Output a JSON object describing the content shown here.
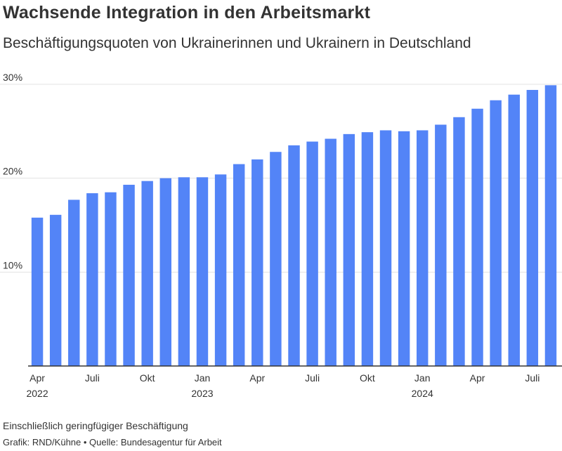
{
  "title": "Wachsende Integration in den Arbeitsmarkt",
  "subtitle": "Beschäftigungsquoten von Ukrainerinnen und Ukrainern in Deutschland",
  "note": "Einschließlich geringfügiger Beschäftigung",
  "credit": "Grafik: RND/Kühne • Quelle: Bundesagentur für Arbeit",
  "chart_data": {
    "type": "bar",
    "color": "#5384f7",
    "ylim": [
      0,
      30
    ],
    "yticks": [
      {
        "value": 10,
        "label": "10%"
      },
      {
        "value": 20,
        "label": "20%"
      },
      {
        "value": 30,
        "label": "30%"
      }
    ],
    "grid": true,
    "categories": [
      "2022-04",
      "2022-05",
      "2022-06",
      "2022-07",
      "2022-08",
      "2022-09",
      "2022-10",
      "2022-11",
      "2022-12",
      "2023-01",
      "2023-02",
      "2023-03",
      "2023-04",
      "2023-05",
      "2023-06",
      "2023-07",
      "2023-08",
      "2023-09",
      "2023-10",
      "2023-11",
      "2023-12",
      "2024-01",
      "2024-02",
      "2024-03",
      "2024-04",
      "2024-05",
      "2024-06",
      "2024-07",
      "2024-08"
    ],
    "values": [
      15.8,
      16.1,
      17.7,
      18.4,
      18.5,
      19.3,
      19.7,
      20.0,
      20.1,
      20.1,
      20.4,
      21.5,
      22.0,
      22.8,
      23.5,
      23.9,
      24.2,
      24.7,
      24.9,
      25.1,
      25.0,
      25.1,
      25.7,
      26.5,
      27.4,
      28.3,
      28.9,
      29.4,
      29.9
    ],
    "xtick_labels": [
      {
        "index": 0,
        "lines": [
          "Apr",
          "2022"
        ]
      },
      {
        "index": 3,
        "lines": [
          "Juli"
        ]
      },
      {
        "index": 6,
        "lines": [
          "Okt"
        ]
      },
      {
        "index": 9,
        "lines": [
          "Jan",
          "2023"
        ]
      },
      {
        "index": 12,
        "lines": [
          "Apr"
        ]
      },
      {
        "index": 15,
        "lines": [
          "Juli"
        ]
      },
      {
        "index": 18,
        "lines": [
          "Okt"
        ]
      },
      {
        "index": 21,
        "lines": [
          "Jan",
          "2024"
        ]
      },
      {
        "index": 24,
        "lines": [
          "Apr"
        ]
      },
      {
        "index": 27,
        "lines": [
          "Juli"
        ]
      }
    ]
  }
}
